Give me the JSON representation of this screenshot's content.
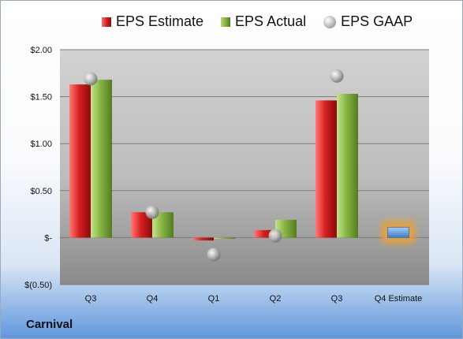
{
  "legend": {
    "estimate": "EPS Estimate",
    "actual": "EPS Actual",
    "gaap": "EPS GAAP"
  },
  "company": "Carnival",
  "colors": {
    "estimate": "#c61a1a",
    "actual": "#7aa83a",
    "gaap": "#a9a9a9",
    "future_estimate": "#5b9bd5",
    "future_glow": "#f0a030"
  },
  "chart_data": {
    "type": "bar",
    "categories": [
      "Q3",
      "Q4",
      "Q1",
      "Q2",
      "Q3",
      "Q4 Estimate"
    ],
    "series": [
      {
        "name": "EPS Estimate",
        "values": [
          1.63,
          0.27,
          -0.03,
          0.08,
          1.46,
          0.11
        ]
      },
      {
        "name": "EPS Actual",
        "values": [
          1.68,
          0.27,
          0.0,
          0.19,
          1.53,
          null
        ]
      },
      {
        "name": "EPS GAAP",
        "type": "scatter",
        "values": [
          1.69,
          0.27,
          -0.18,
          0.02,
          1.72,
          null
        ]
      }
    ],
    "y_tick_labels": [
      "$(0.50)",
      "$-",
      "$0.50",
      "$1.00",
      "$1.50",
      "$2.00"
    ],
    "y_ticks": [
      -0.5,
      0,
      0.5,
      1.0,
      1.5,
      2.0
    ],
    "ylim": [
      -0.5,
      2.0
    ],
    "grid": true,
    "legend_position": "top"
  }
}
